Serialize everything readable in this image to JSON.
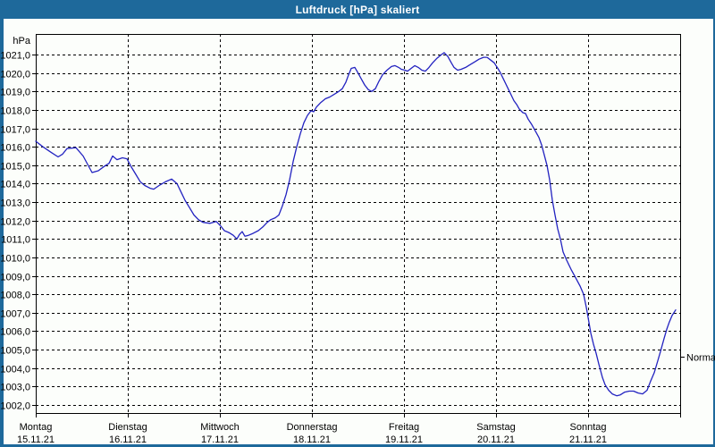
{
  "window": {
    "title": "Luftdruck [hPa] skaliert"
  },
  "colors": {
    "titlebar": "#1e699b",
    "window_border": "#1e699b",
    "content_background": "#fcfefb",
    "curve": "#2222c0",
    "grid": "#000000",
    "text": "#000000",
    "title_text": "#ffffff"
  },
  "chart_data": {
    "type": "line",
    "title": "Luftdruck [hPa] skaliert",
    "unit_label": "hPa",
    "ylabel": "hPa",
    "ylim": [
      1002,
      1021
    ],
    "grid": "dashed",
    "legend_position": "none",
    "y_ticks": [
      {
        "v": 1021,
        "label": "1021,0"
      },
      {
        "v": 1020,
        "label": "1020,0"
      },
      {
        "v": 1019,
        "label": "1019,0"
      },
      {
        "v": 1018,
        "label": "1018,0"
      },
      {
        "v": 1017,
        "label": "1017,0"
      },
      {
        "v": 1016,
        "label": "1016,0"
      },
      {
        "v": 1015,
        "label": "1015,0"
      },
      {
        "v": 1014,
        "label": "1014,0"
      },
      {
        "v": 1013,
        "label": "1013,0"
      },
      {
        "v": 1012,
        "label": "1012,0"
      },
      {
        "v": 1011,
        "label": "1011,0"
      },
      {
        "v": 1010,
        "label": "1010,0"
      },
      {
        "v": 1009,
        "label": "1009,0"
      },
      {
        "v": 1008,
        "label": "1008,0"
      },
      {
        "v": 1007,
        "label": "1007,0"
      },
      {
        "v": 1006,
        "label": "1006,0"
      },
      {
        "v": 1005,
        "label": "1005,0"
      },
      {
        "v": 1004,
        "label": "1004,0"
      },
      {
        "v": 1003,
        "label": "1003,0"
      },
      {
        "v": 1002,
        "label": "1002,0"
      }
    ],
    "x_ticks": [
      {
        "t": 0,
        "day": "Montag",
        "date": "15.11.21"
      },
      {
        "t": 1,
        "day": "Dienstag",
        "date": "16.11.21"
      },
      {
        "t": 2,
        "day": "Mittwoch",
        "date": "17.11.21"
      },
      {
        "t": 3,
        "day": "Donnerstag",
        "date": "18.11.21"
      },
      {
        "t": 4,
        "day": "Freitag",
        "date": "19.11.21"
      },
      {
        "t": 5,
        "day": "Samstag",
        "date": "20.11.21"
      },
      {
        "t": 6,
        "day": "Sonntag",
        "date": "21.11.21"
      }
    ],
    "x_days_total": 7,
    "annotations": [
      {
        "label": "Normal",
        "value": 1004.6,
        "side": "right"
      }
    ],
    "series": [
      {
        "name": "Luftdruck",
        "color": "#2222c0",
        "points": [
          [
            0.0,
            1016.3
          ],
          [
            0.078,
            1016.0
          ],
          [
            0.165,
            1015.7
          ],
          [
            0.243,
            1015.45
          ],
          [
            0.291,
            1015.6
          ],
          [
            0.34,
            1015.9
          ],
          [
            0.437,
            1015.95
          ],
          [
            0.515,
            1015.5
          ],
          [
            0.612,
            1014.6
          ],
          [
            0.68,
            1014.7
          ],
          [
            0.748,
            1014.95
          ],
          [
            0.796,
            1015.1
          ],
          [
            0.835,
            1015.5
          ],
          [
            0.883,
            1015.3
          ],
          [
            0.942,
            1015.4
          ],
          [
            0.99,
            1015.35
          ],
          [
            1.039,
            1014.9
          ],
          [
            1.087,
            1014.5
          ],
          [
            1.136,
            1014.1
          ],
          [
            1.184,
            1013.9
          ],
          [
            1.243,
            1013.75
          ],
          [
            1.282,
            1013.7
          ],
          [
            1.34,
            1013.9
          ],
          [
            1.408,
            1014.1
          ],
          [
            1.476,
            1014.25
          ],
          [
            1.534,
            1014.0
          ],
          [
            1.583,
            1013.5
          ],
          [
            1.621,
            1013.1
          ],
          [
            1.67,
            1012.7
          ],
          [
            1.718,
            1012.3
          ],
          [
            1.767,
            1012.05
          ],
          [
            1.816,
            1011.9
          ],
          [
            1.893,
            1011.85
          ],
          [
            1.961,
            1011.95
          ],
          [
            2.01,
            1011.7
          ],
          [
            2.049,
            1011.45
          ],
          [
            2.097,
            1011.35
          ],
          [
            2.146,
            1011.2
          ],
          [
            2.184,
            1011.0
          ],
          [
            2.214,
            1011.25
          ],
          [
            2.243,
            1011.4
          ],
          [
            2.272,
            1011.15
          ],
          [
            2.311,
            1011.2
          ],
          [
            2.359,
            1011.3
          ],
          [
            2.417,
            1011.45
          ],
          [
            2.466,
            1011.65
          ],
          [
            2.515,
            1011.9
          ],
          [
            2.553,
            1012.05
          ],
          [
            2.602,
            1012.15
          ],
          [
            2.641,
            1012.3
          ],
          [
            2.68,
            1012.8
          ],
          [
            2.718,
            1013.4
          ],
          [
            2.757,
            1014.2
          ],
          [
            2.796,
            1015.2
          ],
          [
            2.835,
            1016.0
          ],
          [
            2.874,
            1016.7
          ],
          [
            2.913,
            1017.3
          ],
          [
            2.951,
            1017.7
          ],
          [
            2.99,
            1017.95
          ],
          [
            3.019,
            1017.9
          ],
          [
            3.049,
            1018.15
          ],
          [
            3.097,
            1018.4
          ],
          [
            3.146,
            1018.6
          ],
          [
            3.194,
            1018.7
          ],
          [
            3.243,
            1018.85
          ],
          [
            3.291,
            1019.0
          ],
          [
            3.33,
            1019.15
          ],
          [
            3.369,
            1019.5
          ],
          [
            3.398,
            1019.9
          ],
          [
            3.427,
            1020.25
          ],
          [
            3.466,
            1020.3
          ],
          [
            3.495,
            1020.05
          ],
          [
            3.534,
            1019.7
          ],
          [
            3.573,
            1019.35
          ],
          [
            3.612,
            1019.1
          ],
          [
            3.65,
            1019.0
          ],
          [
            3.689,
            1019.15
          ],
          [
            3.728,
            1019.55
          ],
          [
            3.767,
            1019.9
          ],
          [
            3.816,
            1020.15
          ],
          [
            3.864,
            1020.35
          ],
          [
            3.903,
            1020.4
          ],
          [
            3.942,
            1020.3
          ],
          [
            3.971,
            1020.2
          ],
          [
            4.01,
            1020.15
          ],
          [
            4.039,
            1020.1
          ],
          [
            4.078,
            1020.25
          ],
          [
            4.117,
            1020.4
          ],
          [
            4.155,
            1020.3
          ],
          [
            4.194,
            1020.15
          ],
          [
            4.233,
            1020.1
          ],
          [
            4.272,
            1020.3
          ],
          [
            4.311,
            1020.55
          ],
          [
            4.359,
            1020.8
          ],
          [
            4.408,
            1021.0
          ],
          [
            4.437,
            1021.1
          ],
          [
            4.476,
            1020.9
          ],
          [
            4.515,
            1020.55
          ],
          [
            4.544,
            1020.3
          ],
          [
            4.583,
            1020.15
          ],
          [
            4.621,
            1020.2
          ],
          [
            4.67,
            1020.3
          ],
          [
            4.718,
            1020.45
          ],
          [
            4.767,
            1020.6
          ],
          [
            4.816,
            1020.75
          ],
          [
            4.864,
            1020.85
          ],
          [
            4.903,
            1020.85
          ],
          [
            4.942,
            1020.7
          ],
          [
            4.981,
            1020.55
          ],
          [
            5.019,
            1020.25
          ],
          [
            5.049,
            1020.0
          ],
          [
            5.078,
            1019.7
          ],
          [
            5.107,
            1019.4
          ],
          [
            5.136,
            1019.1
          ],
          [
            5.165,
            1018.8
          ],
          [
            5.194,
            1018.5
          ],
          [
            5.223,
            1018.3
          ],
          [
            5.252,
            1018.05
          ],
          [
            5.291,
            1017.85
          ],
          [
            5.32,
            1017.8
          ],
          [
            5.349,
            1017.5
          ],
          [
            5.388,
            1017.2
          ],
          [
            5.427,
            1016.85
          ],
          [
            5.466,
            1016.5
          ],
          [
            5.495,
            1016.1
          ],
          [
            5.524,
            1015.55
          ],
          [
            5.553,
            1015.0
          ],
          [
            5.583,
            1014.2
          ],
          [
            5.612,
            1013.1
          ],
          [
            5.641,
            1012.3
          ],
          [
            5.67,
            1011.55
          ],
          [
            5.699,
            1011.0
          ],
          [
            5.728,
            1010.3
          ],
          [
            5.767,
            1009.85
          ],
          [
            5.816,
            1009.35
          ],
          [
            5.864,
            1008.9
          ],
          [
            5.913,
            1008.45
          ],
          [
            5.951,
            1008.0
          ],
          [
            5.981,
            1007.3
          ],
          [
            6.0,
            1006.75
          ],
          [
            6.029,
            1005.9
          ],
          [
            6.058,
            1005.3
          ],
          [
            6.087,
            1004.8
          ],
          [
            6.117,
            1004.2
          ],
          [
            6.155,
            1003.5
          ],
          [
            6.184,
            1003.1
          ],
          [
            6.223,
            1002.8
          ],
          [
            6.262,
            1002.6
          ],
          [
            6.311,
            1002.5
          ],
          [
            6.35,
            1002.55
          ],
          [
            6.398,
            1002.7
          ],
          [
            6.447,
            1002.75
          ],
          [
            6.495,
            1002.75
          ],
          [
            6.544,
            1002.65
          ],
          [
            6.592,
            1002.6
          ],
          [
            6.641,
            1002.8
          ],
          [
            6.68,
            1003.3
          ],
          [
            6.718,
            1003.75
          ],
          [
            6.757,
            1004.4
          ],
          [
            6.786,
            1004.9
          ],
          [
            6.825,
            1005.6
          ],
          [
            6.854,
            1006.1
          ],
          [
            6.883,
            1006.5
          ],
          [
            6.913,
            1006.85
          ],
          [
            6.951,
            1007.15
          ]
        ]
      }
    ]
  }
}
